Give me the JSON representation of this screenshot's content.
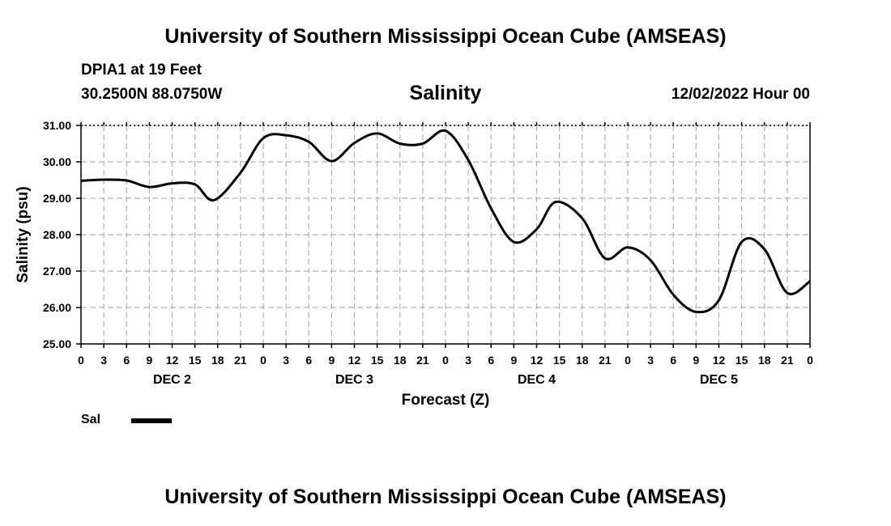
{
  "header": {
    "title": "University of Southern Mississippi Ocean Cube (AMSEAS)",
    "station": "DPIA1 at 19 Feet",
    "coords": "30.2500N  88.0750W",
    "variable": "Salinity",
    "datetime": "12/02/2022 Hour 00"
  },
  "footer": {
    "title": "University of Southern Mississippi Ocean Cube (AMSEAS)"
  },
  "legend": {
    "label": "Sal",
    "color": "#000000"
  },
  "chart_data": {
    "type": "line",
    "title": "Salinity",
    "xlabel": "Forecast (Z)",
    "ylabel": "Salinity (psu)",
    "ylim": [
      25.0,
      31.0
    ],
    "xlim": [
      0,
      96
    ],
    "grid": true,
    "y_ticks": [
      "25.00",
      "26.00",
      "27.00",
      "28.00",
      "29.00",
      "30.00",
      "31.00"
    ],
    "x_tick_labels": [
      "0",
      "3",
      "6",
      "9",
      "12",
      "15",
      "18",
      "21",
      "0",
      "3",
      "6",
      "9",
      "12",
      "15",
      "18",
      "21",
      "0",
      "3",
      "6",
      "9",
      "12",
      "15",
      "18",
      "21",
      "0",
      "3",
      "6",
      "9",
      "12",
      "15",
      "18",
      "21",
      "0"
    ],
    "day_labels": [
      {
        "label": "DEC 2",
        "hour": 12
      },
      {
        "label": "DEC 3",
        "hour": 36
      },
      {
        "label": "DEC 4",
        "hour": 60
      },
      {
        "label": "DEC 5",
        "hour": 84
      }
    ],
    "series": [
      {
        "name": "Sal",
        "color": "#000000",
        "x": [
          0,
          3,
          6,
          9,
          12,
          15,
          17.5,
          21,
          24,
          27,
          30,
          33,
          36,
          39,
          42,
          45,
          48,
          51,
          54,
          57,
          60,
          62.5,
          66,
          69,
          72,
          75,
          78,
          81,
          84,
          87,
          90,
          93,
          96
        ],
        "values": [
          29.48,
          29.51,
          29.49,
          29.31,
          29.41,
          29.38,
          28.95,
          29.7,
          30.65,
          30.73,
          30.55,
          30.02,
          30.52,
          30.78,
          30.5,
          30.5,
          30.85,
          30.05,
          28.72,
          27.8,
          28.15,
          28.9,
          28.45,
          27.35,
          27.65,
          27.3,
          26.35,
          25.88,
          26.2,
          27.8,
          27.6,
          26.4,
          26.72
        ]
      }
    ]
  }
}
